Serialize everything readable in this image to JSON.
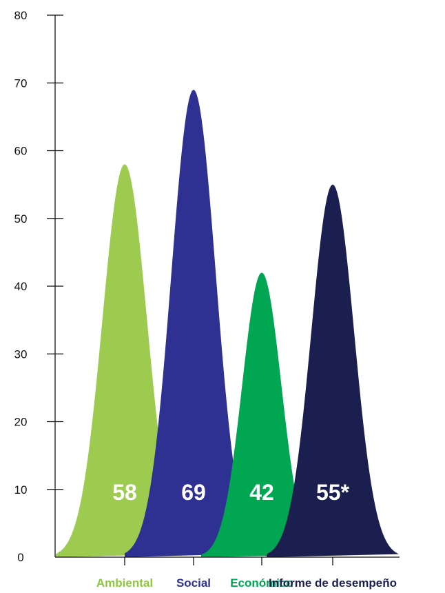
{
  "chart_data": {
    "type": "area",
    "title": "",
    "xlabel": "",
    "ylabel": "",
    "ylim": [
      0,
      80
    ],
    "yticks": [
      0,
      10,
      20,
      30,
      40,
      50,
      60,
      70,
      80
    ],
    "grid": false,
    "categories": [
      "Ambiental",
      "Social",
      "Económico",
      "Informe de desempeño"
    ],
    "values": [
      58,
      69,
      42,
      55
    ],
    "value_labels": [
      "58",
      "69",
      "42",
      "55*"
    ],
    "colors": [
      "#9ccb4f",
      "#2e3192",
      "#00a651",
      "#1b1f4f"
    ],
    "label_colors": [
      "#8dc63f",
      "#2e3192",
      "#00a651",
      "#1b1f4f"
    ]
  }
}
